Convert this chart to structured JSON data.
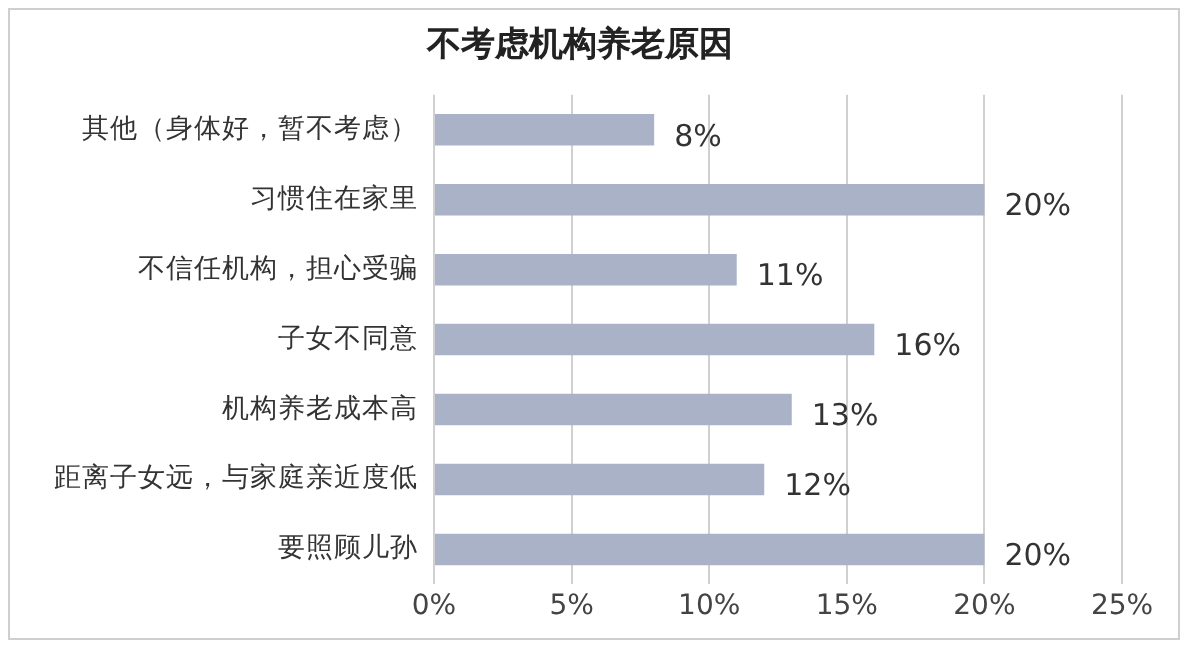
{
  "chart_data": {
    "type": "bar",
    "orientation": "horizontal",
    "title": "不考虑机构养老原因",
    "categories": [
      "其他（身体好，暂不考虑）",
      "习惯住在家里",
      "不信任机构，担心受骗",
      "子女不同意",
      "机构养老成本高",
      "距离子女远，与家庭亲近度低",
      "要照顾儿孙"
    ],
    "values": [
      8,
      20,
      11,
      16,
      13,
      12,
      20
    ],
    "value_labels": [
      "8%",
      "20%",
      "11%",
      "16%",
      "13%",
      "12%",
      "20%"
    ],
    "color": "#a9b2c6",
    "xlim": [
      0,
      25
    ],
    "xticks": [
      {
        "value": 0,
        "label": "0%"
      },
      {
        "value": 5,
        "label": "5%"
      },
      {
        "value": 10,
        "label": "10%"
      },
      {
        "value": 15,
        "label": "15%"
      },
      {
        "value": 20,
        "label": "20%"
      },
      {
        "value": 25,
        "label": "25%"
      }
    ],
    "grid": "x",
    "legend": false
  }
}
